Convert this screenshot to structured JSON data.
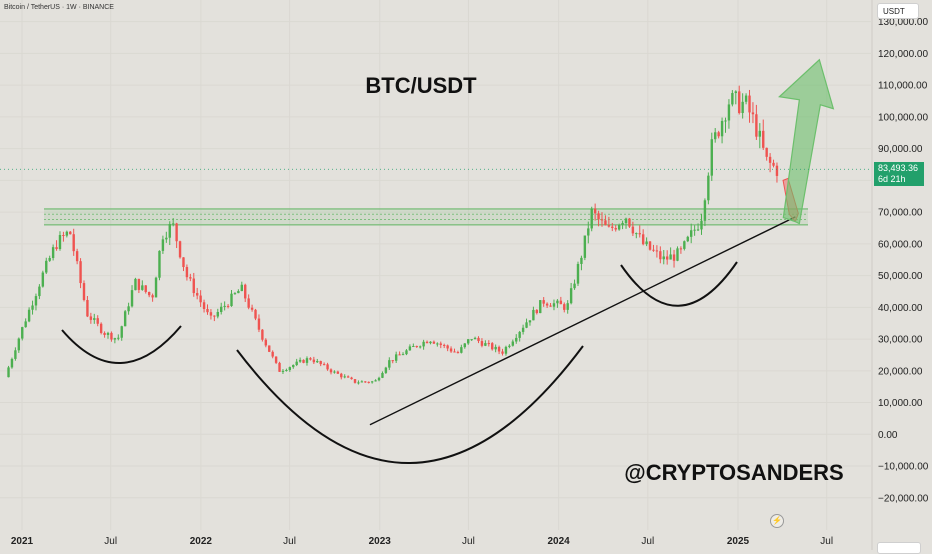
{
  "header": {
    "symbol": "Bitcoin / TetherUS · 1W · BINANCE",
    "currency": "USDT"
  },
  "overlay": {
    "title": "BTC/USDT",
    "watermark": "@CRYPTOSANDERS",
    "last_price": "83,493.36",
    "countdown": "6d 21h"
  },
  "colors": {
    "background": "#e3e1dc",
    "up_candle": "#4caf50",
    "down_candle": "#ef5350",
    "support_zone": "#7fbf7f",
    "forecast_arrow": "#6cbf6c",
    "price_tag": "#22a06b"
  },
  "chart_data": {
    "type": "candlestick",
    "interval": "1W",
    "ylim": [
      -25000,
      135000
    ],
    "y_ticks": [
      "130,000.00",
      "120,000.00",
      "110,000.00",
      "100,000.00",
      "90,000.00",
      "80,000.00",
      "70,000.00",
      "60,000.00",
      "50,000.00",
      "40,000.00",
      "30,000.00",
      "20,000.00",
      "10,000.00",
      "0.00",
      "−10,000.00",
      "−20,000.00"
    ],
    "y_tick_values": [
      130000,
      120000,
      110000,
      100000,
      90000,
      80000,
      70000,
      60000,
      50000,
      40000,
      30000,
      20000,
      10000,
      0,
      -10000,
      -20000
    ],
    "x_ticks": [
      "2021",
      "Jul",
      "2022",
      "Jul",
      "2023",
      "Jul",
      "2024",
      "Jul",
      "2025",
      "Jul"
    ],
    "x_tick_dates": [
      "2021-01-01",
      "2021-07-01",
      "2022-01-01",
      "2022-07-01",
      "2023-01-01",
      "2023-07-01",
      "2024-01-01",
      "2024-07-01",
      "2025-01-01",
      "2025-07-01"
    ],
    "price_path": [
      [
        "2020-12-01",
        18000
      ],
      [
        "2021-01-04",
        33000
      ],
      [
        "2021-02-15",
        50000
      ],
      [
        "2021-03-15",
        60000
      ],
      [
        "2021-04-12",
        64000
      ],
      [
        "2021-05-17",
        38000
      ],
      [
        "2021-06-21",
        32000
      ],
      [
        "2021-07-19",
        30000
      ],
      [
        "2021-08-23",
        48000
      ],
      [
        "2021-09-27",
        43000
      ],
      [
        "2021-10-18",
        63000
      ],
      [
        "2021-11-08",
        66000
      ],
      [
        "2021-12-06",
        50000
      ],
      [
        "2022-01-24",
        36000
      ],
      [
        "2022-03-28",
        46000
      ],
      [
        "2022-05-09",
        31000
      ],
      [
        "2022-06-13",
        20000
      ],
      [
        "2022-08-15",
        24000
      ],
      [
        "2022-10-03",
        19500
      ],
      [
        "2022-11-14",
        16500
      ],
      [
        "2022-12-26",
        16600
      ],
      [
        "2023-01-23",
        23000
      ],
      [
        "2023-03-20",
        28000
      ],
      [
        "2023-04-17",
        30000
      ],
      [
        "2023-06-12",
        25500
      ],
      [
        "2023-07-10",
        30500
      ],
      [
        "2023-09-11",
        25800
      ],
      [
        "2023-10-23",
        34000
      ],
      [
        "2023-12-04",
        42000
      ],
      [
        "2024-01-22",
        40000
      ],
      [
        "2024-02-26",
        60000
      ],
      [
        "2024-03-11",
        70000
      ],
      [
        "2024-04-15",
        64000
      ],
      [
        "2024-05-20",
        69000
      ],
      [
        "2024-06-24",
        60000
      ],
      [
        "2024-08-05",
        55000
      ],
      [
        "2024-09-09",
        57000
      ],
      [
        "2024-10-21",
        68000
      ],
      [
        "2024-11-11",
        90000
      ],
      [
        "2024-12-16",
        105000
      ],
      [
        "2025-01-20",
        104000
      ],
      [
        "2025-02-10",
        97000
      ],
      [
        "2025-03-03",
        86000
      ],
      [
        "2025-03-24",
        83493
      ]
    ],
    "support_zone": [
      66000,
      71000
    ],
    "trendline": [
      [
        "2022-12-12",
        3000
      ],
      [
        "2025-04-28",
        68500
      ]
    ],
    "forecast_arrow": {
      "from": [
        "2025-04-28",
        67000
      ],
      "to": [
        "2025-06-16",
        118000
      ]
    },
    "small_red_arrow": {
      "from": [
        "2025-04-07",
        80000
      ],
      "to": [
        "2025-04-28",
        68000
      ]
    }
  }
}
